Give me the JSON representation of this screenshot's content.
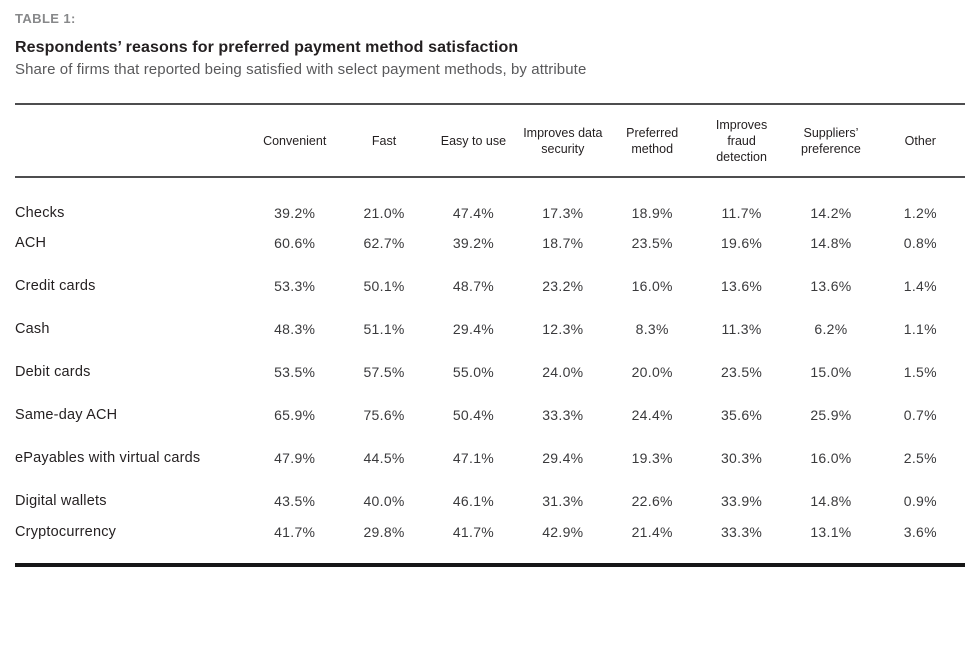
{
  "header": {
    "table_label": "TABLE 1:",
    "title": "Respondents’ reasons for preferred payment method satisfaction",
    "subtitle": "Share of firms that reported being satisfied with select payment methods, by attribute"
  },
  "chart_data": {
    "type": "table",
    "title": "Respondents’ reasons for preferred payment method satisfaction",
    "subtitle": "Share of firms that reported being satisfied with select payment methods, by attribute",
    "columns": [
      "Convenient",
      "Fast",
      "Easy to use",
      "Improves data security",
      "Preferred method",
      "Improves fraud detection",
      "Suppliers’ preference",
      "Other"
    ],
    "rows": [
      {
        "label": "Checks",
        "values": [
          "39.2%",
          "21.0%",
          "47.4%",
          "17.3%",
          "18.9%",
          "11.7%",
          "14.2%",
          "1.2%"
        ]
      },
      {
        "label": "ACH",
        "values": [
          "60.6%",
          "62.7%",
          "39.2%",
          "18.7%",
          "23.5%",
          "19.6%",
          "14.8%",
          "0.8%"
        ]
      },
      {
        "label": "Credit cards",
        "values": [
          "53.3%",
          "50.1%",
          "48.7%",
          "23.2%",
          "16.0%",
          "13.6%",
          "13.6%",
          "1.4%"
        ]
      },
      {
        "label": "Cash",
        "values": [
          "48.3%",
          "51.1%",
          "29.4%",
          "12.3%",
          "8.3%",
          "11.3%",
          "6.2%",
          "1.1%"
        ]
      },
      {
        "label": "Debit cards",
        "values": [
          "53.5%",
          "57.5%",
          "55.0%",
          "24.0%",
          "20.0%",
          "23.5%",
          "15.0%",
          "1.5%"
        ]
      },
      {
        "label": "Same-day ACH",
        "values": [
          "65.9%",
          "75.6%",
          "50.4%",
          "33.3%",
          "24.4%",
          "35.6%",
          "25.9%",
          "0.7%"
        ]
      },
      {
        "label": "ePayables with virtual cards",
        "values": [
          "47.9%",
          "44.5%",
          "47.1%",
          "29.4%",
          "19.3%",
          "30.3%",
          "16.0%",
          "2.5%"
        ]
      },
      {
        "label": "Digital wallets",
        "values": [
          "43.5%",
          "40.0%",
          "46.1%",
          "31.3%",
          "22.6%",
          "33.9%",
          "14.8%",
          "0.9%"
        ]
      },
      {
        "label": "Cryptocurrency",
        "values": [
          "41.7%",
          "29.8%",
          "41.7%",
          "42.9%",
          "21.4%",
          "33.3%",
          "13.1%",
          "3.6%"
        ]
      }
    ]
  },
  "colors": {
    "title_text": "#231f20",
    "subtitle_text": "#59595b",
    "table_label_text": "#87888a",
    "header_rule": "#4d4d4f",
    "bottom_rule": "#161617",
    "cell_text": "#3a3a3c"
  }
}
